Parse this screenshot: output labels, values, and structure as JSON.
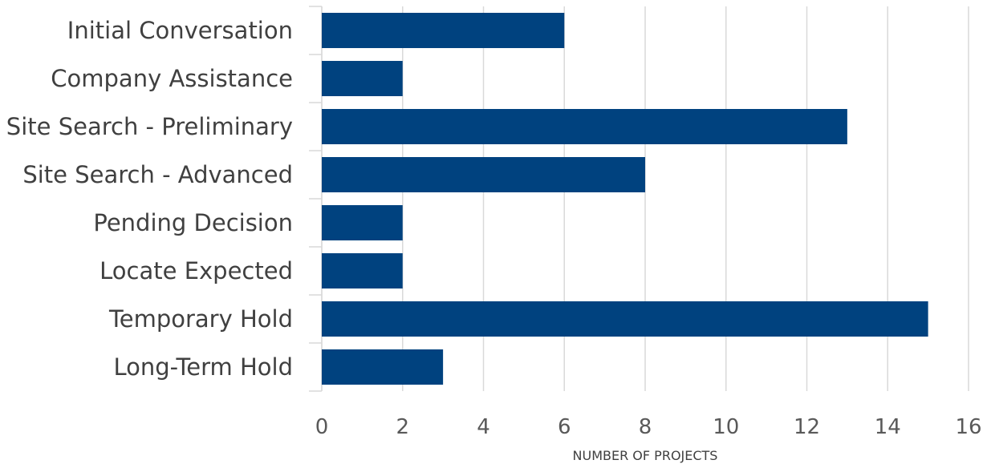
{
  "chart_data": {
    "type": "bar",
    "orientation": "horizontal",
    "title": "",
    "categories": [
      "Initial Conversation",
      "Company Assistance",
      "Site Search - Preliminary",
      "Site Search - Advanced",
      "Pending Decision",
      "Locate Expected",
      "Temporary Hold",
      "Long-Term Hold"
    ],
    "series": [
      {
        "values": [
          6,
          2,
          13,
          8,
          2,
          2,
          15,
          3
        ]
      }
    ],
    "xlabel": "NUMBER OF PROJECTS",
    "ylabel": "",
    "xlim": [
      0,
      16
    ],
    "xticks": [
      "0",
      "2",
      "4",
      "6",
      "8",
      "10",
      "12",
      "14",
      "16"
    ],
    "grid": true,
    "legend": "none",
    "colors": {
      "bar": "#00427f",
      "grid": "#d9d9d9"
    }
  }
}
